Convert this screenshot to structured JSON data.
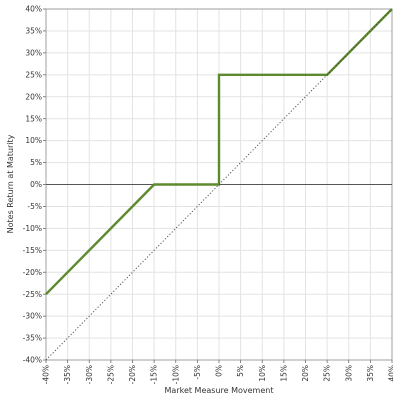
{
  "chart_data": {
    "type": "line",
    "xlabel": "Market Measure Movement",
    "ylabel": "Notes Return at Maturity",
    "xlim": [
      -40,
      40
    ],
    "ylim": [
      -40,
      40
    ],
    "x_ticks": [
      "-40%",
      "-35%",
      "-30%",
      "-25%",
      "-20%",
      "-15%",
      "-10%",
      "-5%",
      "0%",
      "5%",
      "10%",
      "15%",
      "20%",
      "25%",
      "30%",
      "35%",
      "40%"
    ],
    "y_ticks": [
      "40%",
      "35%",
      "30%",
      "25%",
      "20%",
      "15%",
      "10%",
      "5%",
      "0%",
      "-5%",
      "-10%",
      "-15%",
      "-20%",
      "-25%",
      "-30%",
      "-35%",
      "-40%"
    ],
    "grid": true,
    "series": [
      {
        "role": "notes-return",
        "color": "#5e8a2e",
        "style": "solid",
        "points": [
          [
            -40,
            -25
          ],
          [
            -15,
            0
          ],
          [
            0,
            0
          ],
          [
            0,
            25
          ],
          [
            25,
            25
          ],
          [
            40,
            40
          ]
        ]
      },
      {
        "role": "market-measure-reference",
        "color": "#444444",
        "style": "dotted",
        "points": [
          [
            -40,
            -40
          ],
          [
            40,
            40
          ]
        ]
      }
    ]
  }
}
